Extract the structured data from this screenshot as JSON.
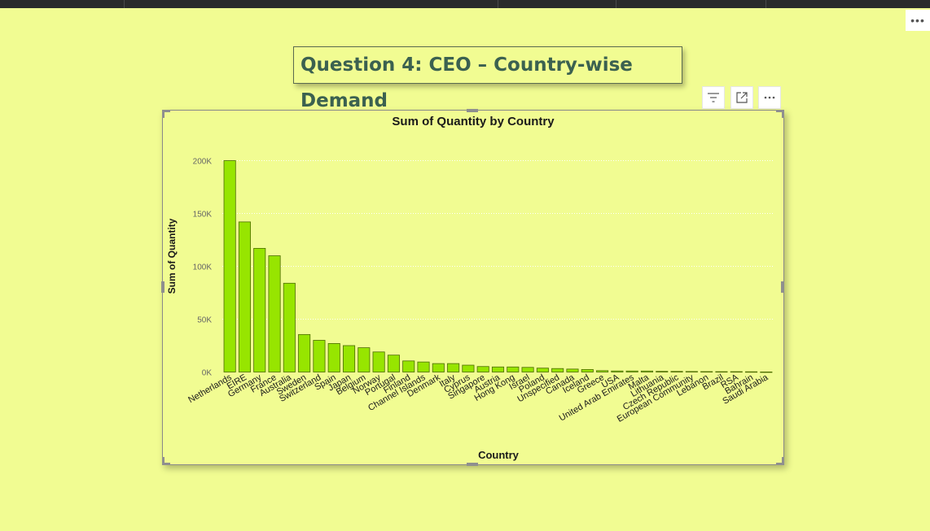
{
  "page": {
    "title": "Question 4: CEO – Country-wise Demand",
    "more_options_label": "•••"
  },
  "visual_header": {
    "filter_icon": "filter-icon",
    "focus_icon": "focus-mode-icon",
    "more_icon": "more-options-icon"
  },
  "colors": {
    "background": "#f1fc92",
    "bar_fill": "#97e500",
    "bar_stroke": "#4d6b00",
    "title_text": "#3b6150"
  },
  "chart_data": {
    "type": "bar",
    "title": "Sum of Quantity by Country",
    "xlabel": "Country",
    "ylabel": "Sum of Quantity",
    "ylim": [
      0,
      200000
    ],
    "yticks": [
      0,
      50000,
      100000,
      150000,
      200000
    ],
    "ytick_labels": [
      "0K",
      "50K",
      "100K",
      "150K",
      "200K"
    ],
    "grid": true,
    "categories": [
      "Netherlands",
      "EIRE",
      "Germany",
      "France",
      "Australia",
      "Sweden",
      "Switzerland",
      "Spain",
      "Japan",
      "Belgium",
      "Norway",
      "Portugal",
      "Finland",
      "Channel Islands",
      "Denmark",
      "Italy",
      "Cyprus",
      "Singapore",
      "Austria",
      "Hong Kong",
      "Israel",
      "Poland",
      "Unspecified",
      "Canada",
      "Iceland",
      "Greece",
      "USA",
      "United Arab Emirates",
      "Malta",
      "Lithuania",
      "Czech Republic",
      "European Community",
      "Lebanon",
      "Brazil",
      "RSA",
      "Bahrain",
      "Saudi Arabia"
    ],
    "values": [
      200000,
      142000,
      117000,
      110000,
      84000,
      35500,
      30000,
      27000,
      25000,
      23000,
      19000,
      16000,
      10500,
      9500,
      8000,
      8000,
      6500,
      5200,
      4800,
      4800,
      4400,
      3700,
      3300,
      2800,
      2400,
      1300,
      1000,
      980,
      950,
      650,
      600,
      500,
      400,
      350,
      350,
      250,
      80
    ]
  }
}
